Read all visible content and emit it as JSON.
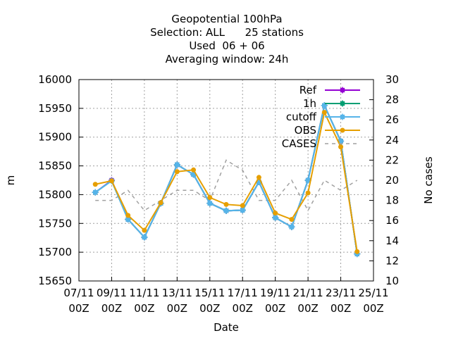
{
  "chart_data": {
    "type": "line",
    "title_lines": [
      "Geopotential 100hPa",
      "Selection: ALL      25 stations",
      "Used  06 + 06",
      "Averaging window: 24h"
    ],
    "xlabel": "Date",
    "ylabel": "m",
    "y2label": "No cases",
    "x_ticks": [
      {
        "day": 7,
        "l1": "07/11",
        "l2": "00Z"
      },
      {
        "day": 9,
        "l1": "09/11",
        "l2": "00Z"
      },
      {
        "day": 11,
        "l1": "11/11",
        "l2": "00Z"
      },
      {
        "day": 13,
        "l1": "13/11",
        "l2": "00Z"
      },
      {
        "day": 15,
        "l1": "15/11",
        "l2": "00Z"
      },
      {
        "day": 17,
        "l1": "17/11",
        "l2": "00Z"
      },
      {
        "day": 19,
        "l1": "19/11",
        "l2": "00Z"
      },
      {
        "day": 21,
        "l1": "21/11",
        "l2": "00Z"
      },
      {
        "day": 23,
        "l1": "23/11",
        "l2": "00Z"
      },
      {
        "day": 25,
        "l1": "25/11",
        "l2": "00Z"
      }
    ],
    "xlim": [
      7,
      25
    ],
    "ylim": [
      15650,
      16000
    ],
    "y_ticks": [
      15650,
      15700,
      15750,
      15800,
      15850,
      15900,
      15950,
      16000
    ],
    "y2lim": [
      10,
      30
    ],
    "y2_ticks": [
      10,
      12,
      14,
      16,
      18,
      20,
      22,
      24,
      26,
      28,
      30
    ],
    "grid": true,
    "legend_position": "top-right",
    "x": [
      8,
      9,
      10,
      11,
      12,
      13,
      14,
      15,
      16,
      17,
      18,
      19,
      20,
      21,
      22,
      23,
      24
    ],
    "series": [
      {
        "name": "Ref",
        "color": "#9400d3",
        "marker": "square",
        "axis": "y",
        "values": [
          15804,
          15825,
          15757,
          15726,
          15785,
          15852,
          15835,
          15785,
          15772,
          15773,
          15822,
          15760,
          15744,
          15825,
          15955,
          15893,
          15697
        ]
      },
      {
        "name": "1h",
        "color": "#009e73",
        "marker": "square",
        "axis": "y",
        "values": [
          15804,
          15824,
          15757,
          15726,
          15785,
          15852,
          15835,
          15785,
          15772,
          15773,
          15822,
          15760,
          15744,
          15825,
          15955,
          15893,
          15697
        ]
      },
      {
        "name": "cutoff",
        "color": "#56b4e9",
        "marker": "square",
        "axis": "y",
        "values": [
          15804,
          15824,
          15757,
          15726,
          15785,
          15852,
          15835,
          15785,
          15772,
          15773,
          15822,
          15760,
          15744,
          15825,
          15955,
          15893,
          15697
        ]
      },
      {
        "name": "OBS",
        "color": "#e69f00",
        "marker": "circle",
        "axis": "y",
        "values": [
          15818,
          15824,
          15764,
          15738,
          15786,
          15840,
          15843,
          15795,
          15783,
          15781,
          15830,
          15768,
          15757,
          15803,
          15943,
          15883,
          15701
        ]
      },
      {
        "name": "CASES",
        "color": "#a0a0a0",
        "marker": "none",
        "dashed": true,
        "axis": "y2",
        "values": [
          18,
          18,
          19,
          17,
          18,
          19,
          19,
          18,
          22,
          21,
          18,
          18,
          20,
          17,
          20,
          19,
          20
        ]
      }
    ]
  }
}
